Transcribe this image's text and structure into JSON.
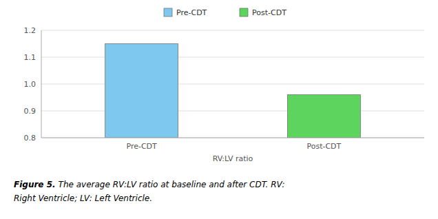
{
  "chart_data": {
    "type": "bar",
    "categories": [
      "Pre-CDT",
      "Post-CDT"
    ],
    "values": [
      1.15,
      0.96
    ],
    "colors": [
      "#7ec8f0",
      "#5dd45d"
    ],
    "xlabel": "RV:LV ratio",
    "legend": "top",
    "legend_labels": [
      "Pre-CDT",
      "Post-CDT"
    ],
    "ylim": [
      0.8,
      1.2
    ],
    "yticks": [
      0.8,
      0.9,
      {
        "value": 1.0,
        "label": "1.0"
      },
      1.1,
      1.2
    ],
    "grid": true,
    "caption": [
      "Figure 5.",
      "The average RV:LV ratio at baseline and after CDT. RV:",
      "Right Ventricle; LV: Left Ventricle."
    ]
  }
}
